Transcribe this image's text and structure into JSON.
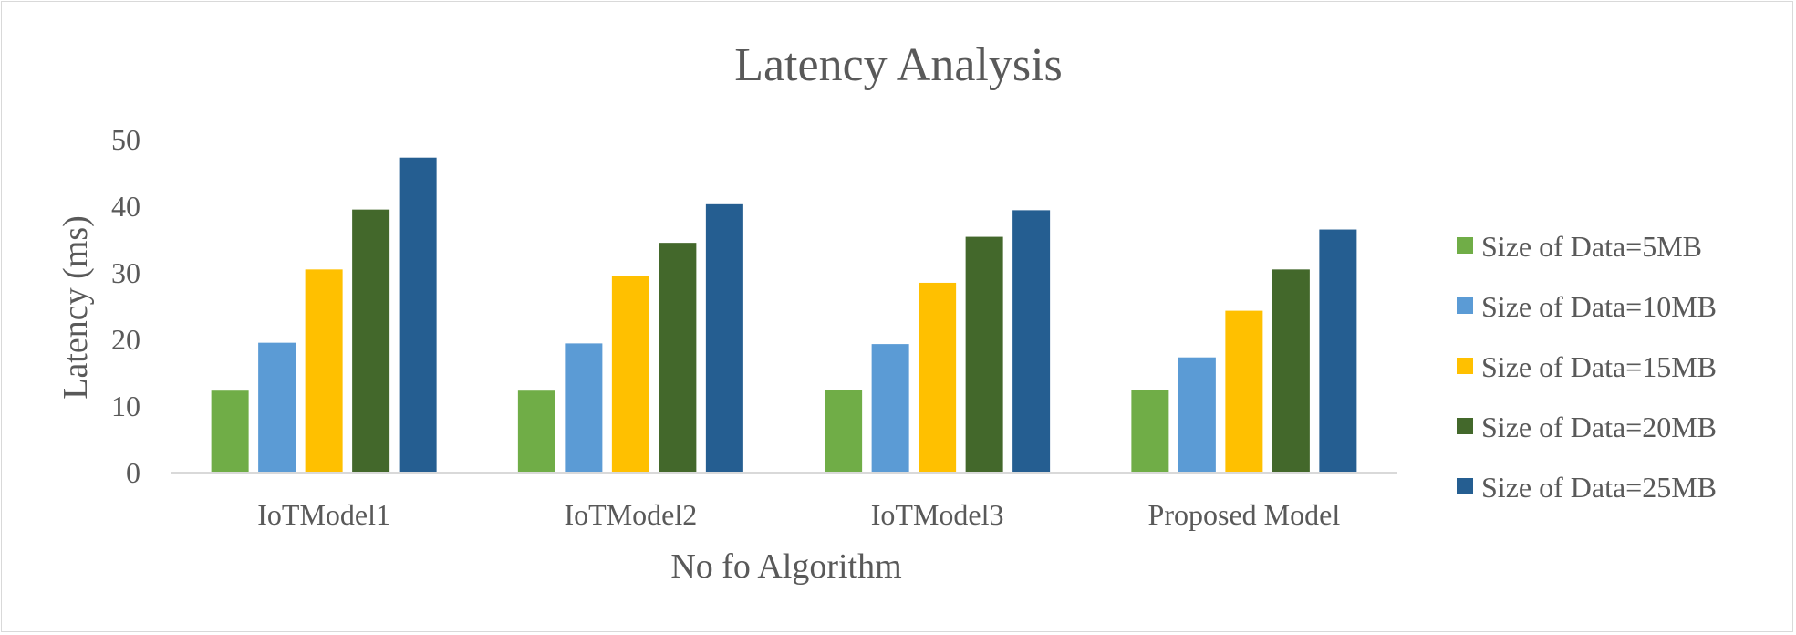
{
  "chart_data": {
    "type": "bar",
    "title": "Latency Analysis",
    "xlabel": "No fo Algorithm",
    "ylabel": "Latency (ms)",
    "ylim": [
      0,
      50
    ],
    "yticks": [
      0,
      10,
      20,
      30,
      40,
      50
    ],
    "grid": false,
    "legend_position": "right",
    "categories": [
      "IoTModel1",
      "IoTModel2",
      "IoTModel3",
      "Proposed Model"
    ],
    "series": [
      {
        "name": "Size of Data=5MB",
        "color": "#70ad47",
        "values": [
          12.3,
          12.3,
          12.4,
          12.4
        ]
      },
      {
        "name": "Size of Data=10MB",
        "color": "#5b9bd5",
        "values": [
          19.5,
          19.4,
          19.3,
          17.3
        ]
      },
      {
        "name": "Size of Data=15MB",
        "color": "#ffc000",
        "values": [
          30.5,
          29.5,
          28.5,
          24.3
        ]
      },
      {
        "name": "Size of Data=20MB",
        "color": "#43682b",
        "values": [
          39.5,
          34.5,
          35.4,
          30.5
        ]
      },
      {
        "name": "Size of Data=25MB",
        "color": "#255e91",
        "values": [
          47.3,
          40.3,
          39.4,
          36.5
        ]
      }
    ]
  }
}
